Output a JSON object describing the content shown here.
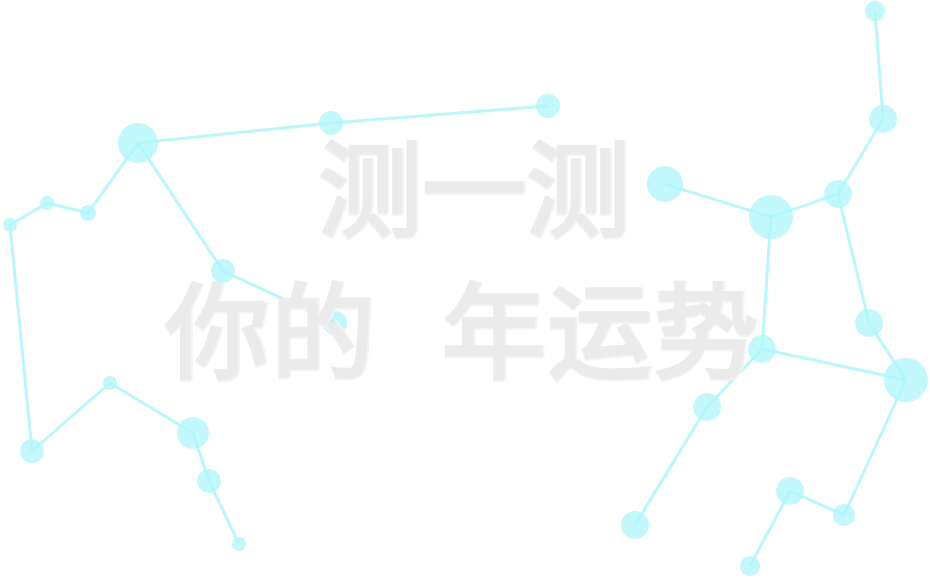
{
  "title": {
    "line1": "测一测",
    "line2": "你的  年运势"
  },
  "colors": {
    "node": "#aef6fb",
    "edge": "#aef6fb",
    "text": "#ebebeb",
    "background": "#ffffff"
  }
}
